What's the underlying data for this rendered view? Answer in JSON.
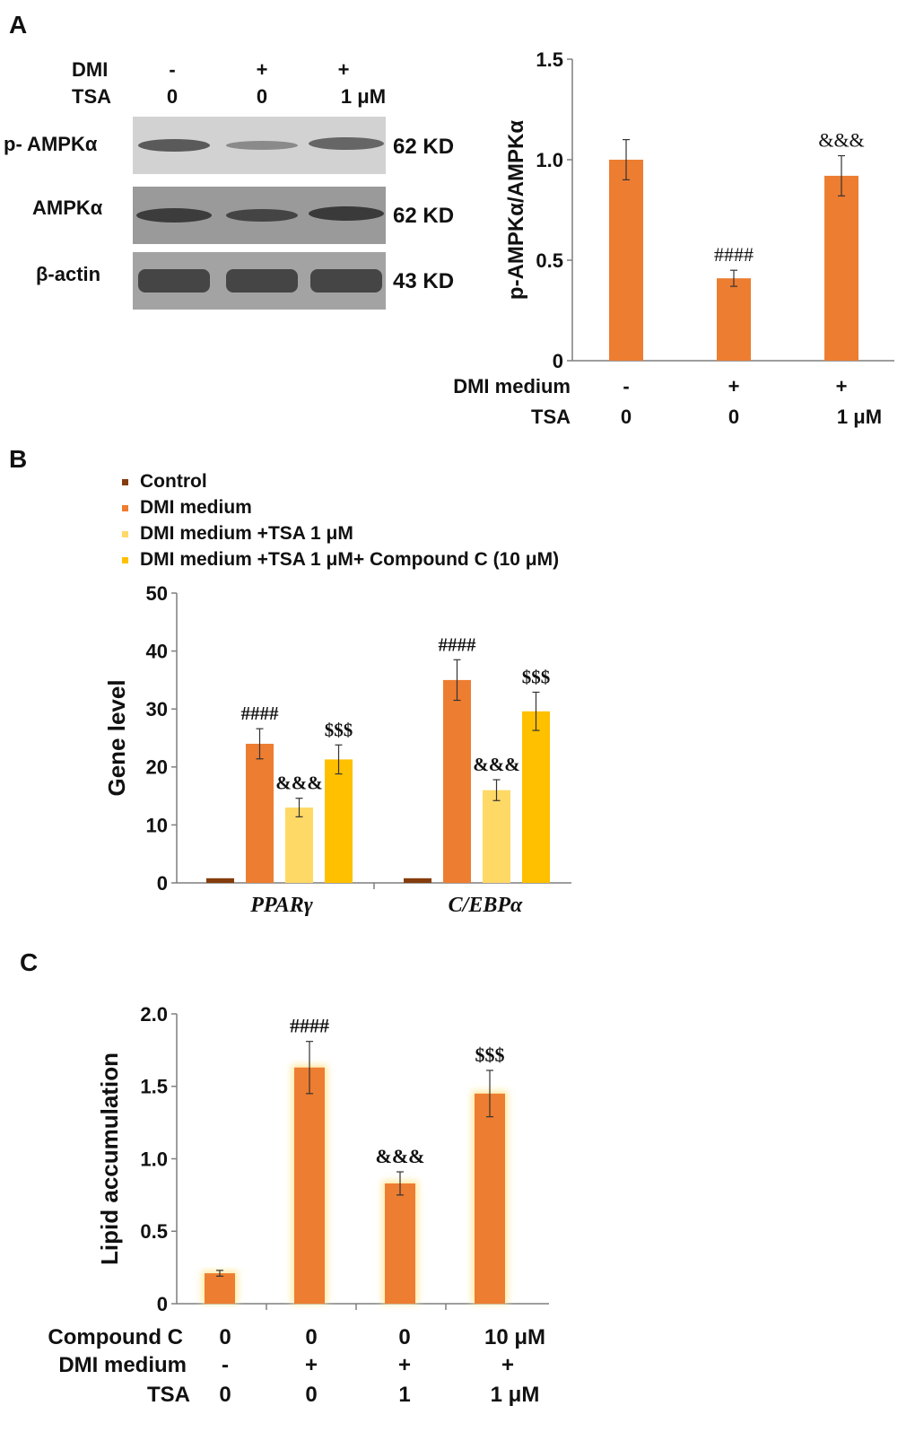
{
  "colors": {
    "orange": "#ED7D31",
    "brown": "#843C0C",
    "light_yellow": "#FFD966",
    "gold": "#FFC000",
    "axis": "#7f7f7f",
    "glow": "#FFE9A0"
  },
  "panels": {
    "a": "A",
    "b": "B",
    "c": "C"
  },
  "blot": {
    "rows": [
      {
        "label": "DMI",
        "values": [
          "-",
          "+",
          "+"
        ]
      },
      {
        "label": "TSA",
        "values": [
          "0",
          "0",
          "1 μM"
        ]
      }
    ],
    "bands": [
      {
        "name": "p- AMPKα",
        "size": "62 KD"
      },
      {
        "name": "AMPKα",
        "size": "62 KD"
      },
      {
        "name": "β-actin",
        "size": "43 KD"
      }
    ]
  },
  "chart_data": [
    {
      "type": "bar",
      "panel": "A",
      "ylabel": "p-AMPKα/AMPKα",
      "ylim": [
        0,
        1.5
      ],
      "yticks": [
        "0",
        "0.5",
        "1.0",
        "1.5"
      ],
      "categories": [
        "1",
        "2",
        "3"
      ],
      "values": [
        1.0,
        0.41,
        0.92
      ],
      "errors": [
        0.1,
        0.04,
        0.1
      ],
      "annotations": [
        "",
        "####",
        "&&&"
      ],
      "grid": false,
      "condition_rows": [
        {
          "label": "DMI medium",
          "values": [
            "-",
            "+",
            "+"
          ]
        },
        {
          "label": "TSA",
          "values": [
            "0",
            "0",
            "1 μM"
          ]
        }
      ]
    },
    {
      "type": "bar",
      "panel": "B",
      "ylabel": "Gene level",
      "ylim": [
        0,
        50
      ],
      "yticks": [
        "0",
        "10",
        "20",
        "30",
        "40",
        "50"
      ],
      "categories": [
        "PPARγ",
        "C/EBPα"
      ],
      "series": [
        {
          "name": "Control",
          "values": [
            0.8,
            0.8
          ],
          "errors": [
            0,
            0
          ],
          "annotations": [
            "",
            ""
          ]
        },
        {
          "name": "DMI medium",
          "values": [
            24,
            35
          ],
          "errors": [
            2.6,
            3.5
          ],
          "annotations": [
            "####",
            "####"
          ]
        },
        {
          "name": "DMI medium +TSA 1 μM",
          "values": [
            13,
            16
          ],
          "errors": [
            1.6,
            1.8
          ],
          "annotations": [
            "&&&",
            "&&&"
          ]
        },
        {
          "name": "DMI medium +TSA 1 μM+  Compound C (10 μM)",
          "values": [
            21.3,
            29.6
          ],
          "errors": [
            2.5,
            3.3
          ],
          "annotations": [
            "$$$",
            "$$$"
          ]
        }
      ],
      "legend": "top-left",
      "grid": false
    },
    {
      "type": "bar",
      "panel": "C",
      "ylabel": "Lipid accumulation",
      "ylim": [
        0,
        2.0
      ],
      "yticks": [
        "0",
        "0.5",
        "1.0",
        "1.5",
        "2.0"
      ],
      "categories": [
        "1",
        "2",
        "3",
        "4"
      ],
      "values": [
        0.21,
        1.63,
        0.83,
        1.45
      ],
      "errors": [
        0.02,
        0.18,
        0.08,
        0.16
      ],
      "annotations": [
        "",
        "####",
        "&&&",
        "$$$"
      ],
      "grid": false,
      "condition_rows": [
        {
          "label": "Compound C",
          "values": [
            "0",
            "0",
            "0",
            "10 μM"
          ]
        },
        {
          "label": "DMI medium",
          "values": [
            "-",
            "+",
            "+",
            "+"
          ]
        },
        {
          "label": "TSA",
          "values": [
            "0",
            "0",
            "1",
            "1 μM"
          ]
        }
      ]
    }
  ]
}
